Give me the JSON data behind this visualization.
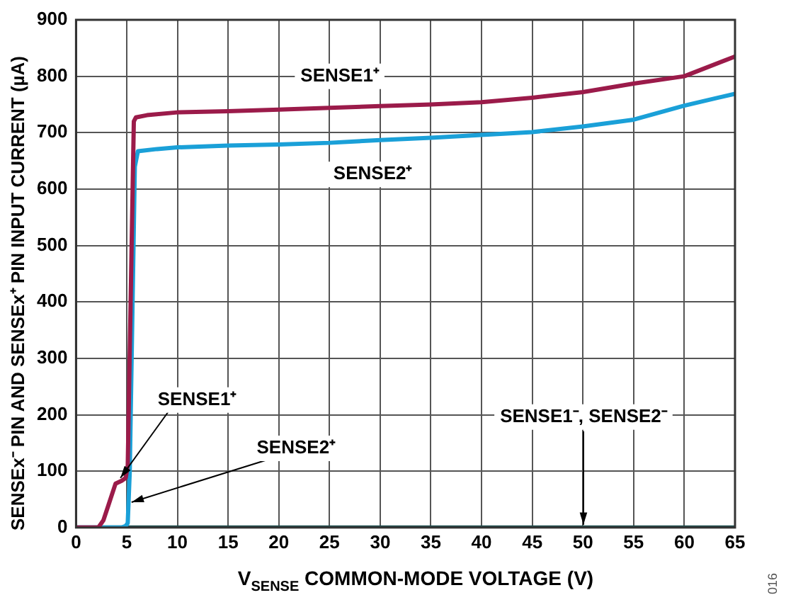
{
  "chart_data": {
    "type": "line",
    "xlabel": "V$_{SENSE}$ COMMON-MODE VOLTAGE (V)",
    "ylabel": "SENSEx⁻ PIN AND SENSEx⁺ PIN INPUT CURRENT (µA)",
    "xlim": [
      0,
      65
    ],
    "xticks": [
      0,
      5,
      10,
      15,
      20,
      25,
      30,
      35,
      40,
      45,
      50,
      55,
      60,
      65
    ],
    "ylim": [
      0,
      900
    ],
    "yticks": [
      0,
      100,
      200,
      300,
      400,
      500,
      600,
      700,
      800,
      900
    ],
    "grid": true,
    "legend": false,
    "marker": "none",
    "line_style": "solid",
    "series": [
      {
        "name": "SENSE1⁺",
        "color": "#9b1b4a",
        "x": [
          0,
          2.2,
          2.7,
          3.2,
          3.9,
          4.5,
          4.9,
          5.1,
          5.7,
          5.9,
          7,
          10,
          15,
          20,
          25,
          30,
          35,
          40,
          45,
          50,
          55,
          60,
          65
        ],
        "values": [
          0,
          0,
          13,
          40,
          78,
          83,
          88,
          110,
          720,
          727,
          731,
          736,
          738,
          741,
          744,
          747,
          750,
          754,
          762,
          772,
          787,
          800,
          835
        ]
      },
      {
        "name": "SENSE2⁺",
        "color": "#1aa0d8",
        "x": [
          0,
          4.5,
          4.9,
          5.1,
          5.3,
          5.8,
          6.1,
          8,
          10,
          15,
          20,
          25,
          30,
          35,
          40,
          45,
          50,
          55,
          60,
          65
        ],
        "values": [
          0,
          0,
          3,
          8,
          100,
          640,
          667,
          671,
          674,
          677,
          679,
          682,
          687,
          691,
          696,
          701,
          711,
          723,
          748,
          769
        ]
      },
      {
        "name": "SENSE1⁻, SENSE2⁻",
        "color": "#1e4d4d",
        "x": [
          0,
          65
        ],
        "values": [
          0,
          0
        ]
      }
    ],
    "annotations": [
      {
        "text": "SENSE1⁺",
        "x": 4.1,
        "y": 88
      },
      {
        "text": "SENSE2⁺",
        "x": 5.2,
        "y": 45
      },
      "016"
    ]
  }
}
